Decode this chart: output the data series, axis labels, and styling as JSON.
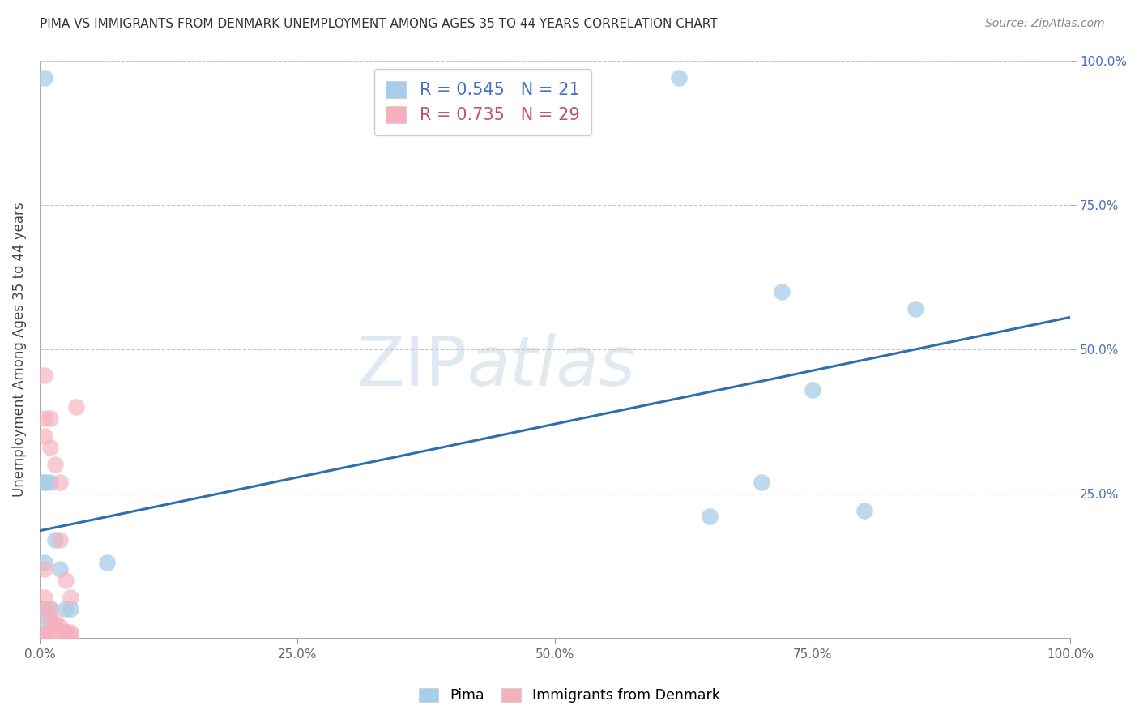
{
  "title": "PIMA VS IMMIGRANTS FROM DENMARK UNEMPLOYMENT AMONG AGES 35 TO 44 YEARS CORRELATION CHART",
  "source": "Source: ZipAtlas.com",
  "ylabel": "Unemployment Among Ages 35 to 44 years",
  "watermark_zip": "ZIP",
  "watermark_atlas": "atlas",
  "blue_R": 0.545,
  "blue_N": 21,
  "pink_R": 0.735,
  "pink_N": 29,
  "blue_scatter_color": "#a8cde8",
  "pink_scatter_color": "#f5b0be",
  "blue_line_color": "#2e6fad",
  "pink_line_color": "#d46478",
  "blue_legend_color": "#4472c4",
  "pink_legend_color": "#c0546a",
  "grid_color": "#c8c8c8",
  "tick_color": "#888888",
  "ytick_color": "#4472c4",
  "blue_x": [
    0.005,
    0.005,
    0.005,
    0.005,
    0.005,
    0.005,
    0.01,
    0.01,
    0.01,
    0.015,
    0.02,
    0.025,
    0.03,
    0.065,
    0.62,
    0.65,
    0.7,
    0.72,
    0.75,
    0.8,
    0.85
  ],
  "blue_y": [
    0.97,
    0.27,
    0.27,
    0.13,
    0.05,
    0.03,
    0.27,
    0.03,
    0.05,
    0.17,
    0.12,
    0.05,
    0.05,
    0.13,
    0.97,
    0.21,
    0.27,
    0.6,
    0.43,
    0.22,
    0.57
  ],
  "pink_x": [
    0.005,
    0.005,
    0.005,
    0.005,
    0.005,
    0.005,
    0.005,
    0.005,
    0.005,
    0.01,
    0.01,
    0.01,
    0.01,
    0.015,
    0.015,
    0.015,
    0.015,
    0.02,
    0.02,
    0.02,
    0.02,
    0.025,
    0.025,
    0.025,
    0.025,
    0.03,
    0.03,
    0.03,
    0.035
  ],
  "pink_y": [
    0.455,
    0.38,
    0.35,
    0.12,
    0.07,
    0.05,
    0.005,
    0.005,
    0.005,
    0.38,
    0.33,
    0.05,
    0.03,
    0.3,
    0.03,
    0.02,
    0.005,
    0.27,
    0.17,
    0.02,
    0.01,
    0.1,
    0.01,
    0.01,
    0.005,
    0.07,
    0.01,
    0.005,
    0.4
  ],
  "xlim": [
    0,
    1.0
  ],
  "ylim": [
    0,
    1.0
  ],
  "xticks": [
    0.0,
    0.25,
    0.5,
    0.75,
    1.0
  ],
  "yticks": [
    0.25,
    0.5,
    0.75,
    1.0
  ],
  "xtick_labels": [
    "0.0%",
    "25.0%",
    "50.0%",
    "75.0%",
    "100.0%"
  ],
  "ytick_labels": [
    "25.0%",
    "50.0%",
    "75.0%",
    "100.0%"
  ]
}
